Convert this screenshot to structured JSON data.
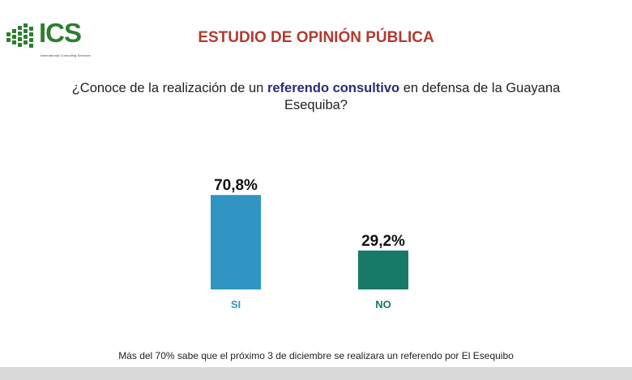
{
  "header": {
    "logo_text": "ICS",
    "logo_subtitle": "International Consulting Services",
    "title": "ESTUDIO DE OPINIÓN PÚBLICA"
  },
  "question": {
    "before": "¿Conoce de la realización de un ",
    "highlight": "referendo consultivo",
    "after": " en defensa de la Guayana Esequiba?"
  },
  "chart_data": {
    "type": "bar",
    "title": "¿Conoce de la realización de un referendo consultivo en defensa de la Guayana Esequiba?",
    "categories": [
      "SI",
      "NO"
    ],
    "values": [
      70.8,
      29.2
    ],
    "data_labels": [
      "70,8%",
      "29,2%"
    ],
    "colors": [
      "#3195c4",
      "#167a66"
    ],
    "ylim": [
      0,
      100
    ],
    "xlabel": "",
    "ylabel": "",
    "grid": false,
    "legend": "none"
  },
  "footnote": "Más del 70% sabe que el próximo 3 de diciembre se realizara un referendo por El Esequibo"
}
